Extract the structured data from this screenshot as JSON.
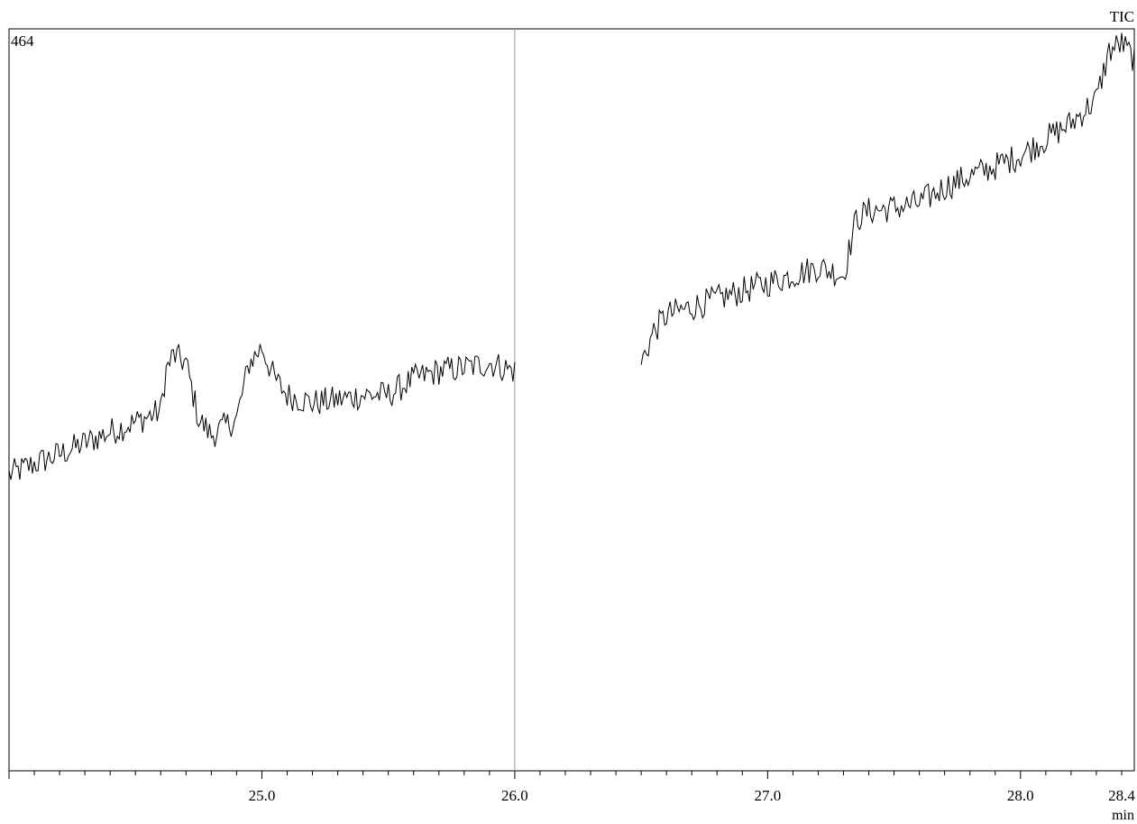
{
  "chart_data": {
    "type": "line",
    "series_label": "TIC",
    "y_max_label": "464",
    "x_unit": "min",
    "xlim": [
      24.0,
      28.45
    ],
    "ylim": [
      0,
      464
    ],
    "x_tick_labels": [
      "25.0",
      "26.0",
      "27.0",
      "28.0",
      "28.4"
    ],
    "x_tick_values": [
      25.0,
      26.0,
      27.0,
      28.0,
      28.4
    ],
    "minor_tick_step": 0.1,
    "marker_line_x": 26.0,
    "colors": {
      "trace": "#000000",
      "axes": "#000000",
      "marker_line": "#9a9a9a"
    },
    "segments": [
      {
        "x": [
          24.0,
          24.1,
          24.2,
          24.3,
          24.4,
          24.5,
          24.6,
          24.62,
          24.65,
          24.7,
          24.75,
          24.8,
          24.85,
          24.9,
          24.95,
          25.0,
          25.05,
          25.1,
          25.2,
          25.3,
          25.4,
          25.5,
          25.6,
          25.7,
          25.8,
          25.9,
          26.0
        ],
        "y": [
          185,
          192,
          198,
          205,
          212,
          218,
          225,
          250,
          260,
          255,
          220,
          210,
          215,
          220,
          255,
          265,
          245,
          235,
          230,
          232,
          235,
          235,
          245,
          250,
          252,
          255,
          250
        ]
      },
      {
        "x": [
          26.5,
          26.55,
          26.6,
          26.7,
          26.8,
          26.9,
          27.0,
          27.1,
          27.2,
          27.3,
          27.35,
          27.4,
          27.5,
          27.6,
          27.7,
          27.8,
          27.9,
          28.0,
          28.1,
          28.2,
          28.3,
          28.35,
          28.4,
          28.45
        ],
        "y": [
          255,
          275,
          285,
          290,
          295,
          300,
          305,
          310,
          315,
          310,
          345,
          350,
          352,
          355,
          365,
          372,
          378,
          385,
          395,
          405,
          420,
          450,
          455,
          445
        ]
      }
    ],
    "noise_amplitude": 9
  }
}
